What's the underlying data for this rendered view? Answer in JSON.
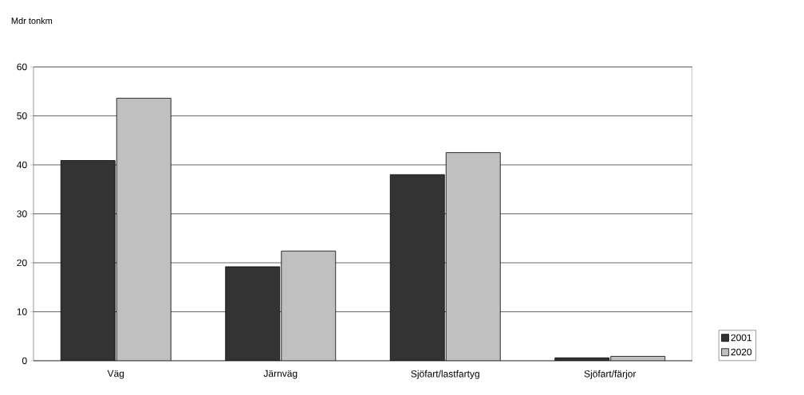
{
  "chart_data": {
    "type": "bar",
    "ylabel": "Mdr tonkm",
    "categories": [
      "Väg",
      "Järnväg",
      "Sjöfart/lastfartyg",
      "Sjöfart/färjor"
    ],
    "series": [
      {
        "name": "2001",
        "color": "#333333",
        "values": [
          40.9,
          19.2,
          38.0,
          0.6
        ]
      },
      {
        "name": "2020",
        "color": "#c0c0c0",
        "values": [
          53.6,
          22.4,
          42.5,
          0.9
        ]
      }
    ],
    "ylim": [
      0,
      60
    ],
    "yticks": [
      0,
      10,
      20,
      30,
      40,
      50,
      60
    ],
    "grid": "y",
    "legend": "right"
  }
}
